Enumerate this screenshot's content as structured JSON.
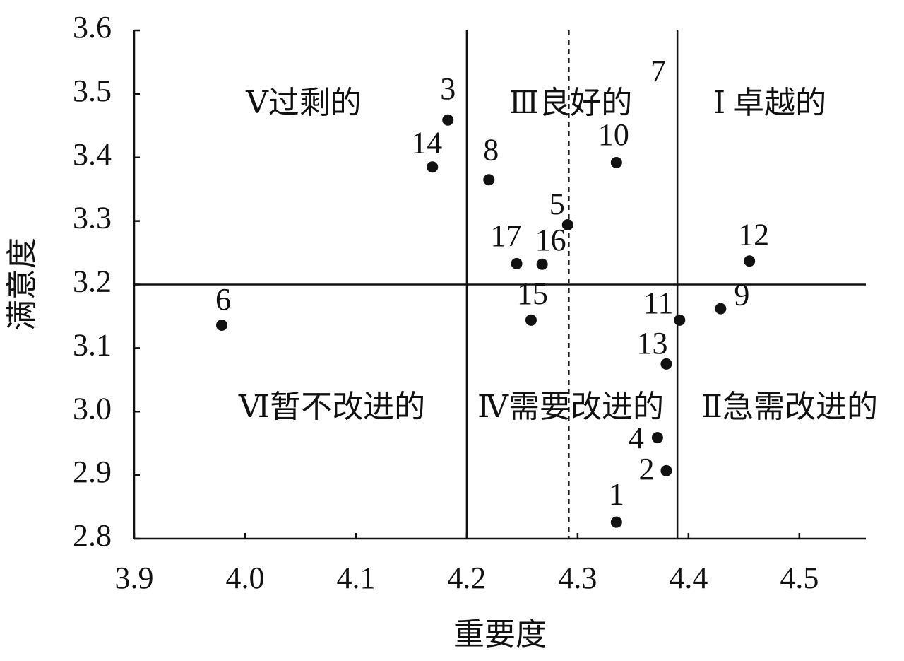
{
  "chart_data": {
    "type": "scatter",
    "x_label": "重要度",
    "y_label": "满意度",
    "xlim": [
      3.9,
      4.56
    ],
    "ylim": [
      2.8,
      3.6
    ],
    "xticks": [
      {
        "value": 3.9,
        "label": "3.9"
      },
      {
        "value": 4.0,
        "label": "4.0"
      },
      {
        "value": 4.1,
        "label": "4.1"
      },
      {
        "value": 4.2,
        "label": "4.2"
      },
      {
        "value": 4.3,
        "label": "4.3"
      },
      {
        "value": 4.4,
        "label": "4.4"
      },
      {
        "value": 4.5,
        "label": "4.5"
      }
    ],
    "yticks": [
      {
        "value": 2.8,
        "label": "2.8"
      },
      {
        "value": 2.9,
        "label": "2.9"
      },
      {
        "value": 3.0,
        "label": "3.0"
      },
      {
        "value": 3.1,
        "label": "3.1"
      },
      {
        "value": 3.2,
        "label": "3.2"
      },
      {
        "value": 3.3,
        "label": "3.3"
      },
      {
        "value": 3.4,
        "label": "3.4"
      },
      {
        "value": 3.5,
        "label": "3.5"
      },
      {
        "value": 3.6,
        "label": "3.6"
      }
    ],
    "color": "#111111",
    "labels": [
      "1",
      "2",
      "3",
      "4",
      "5",
      "6",
      "7",
      "8",
      "9",
      "10",
      "11",
      "12",
      "13",
      "14",
      "15",
      "16",
      "17"
    ],
    "x": [
      4.335,
      4.38,
      4.183,
      4.372,
      4.291,
      3.979,
      null,
      4.22,
      4.429,
      4.335,
      4.392,
      4.455,
      4.38,
      4.169,
      4.258,
      4.268,
      4.245
    ],
    "values": [
      2.826,
      2.907,
      3.459,
      2.959,
      3.294,
      3.136,
      null,
      3.365,
      3.162,
      3.392,
      3.144,
      3.237,
      3.075,
      3.385,
      3.144,
      3.232,
      3.233
    ],
    "vlines": [
      {
        "value": 4.2,
        "style": "solid"
      },
      {
        "value": 4.292,
        "style": "dashed"
      },
      {
        "value": 4.39,
        "style": "solid"
      }
    ],
    "hlines": [
      3.2
    ],
    "quadrant_labels": [
      "Ⅴ过剩的",
      "Ⅲ良好的",
      "Ⅰ 卓越的",
      "Ⅵ暂不改进的",
      "Ⅳ需要改进的",
      "Ⅱ急需改进的"
    ]
  }
}
